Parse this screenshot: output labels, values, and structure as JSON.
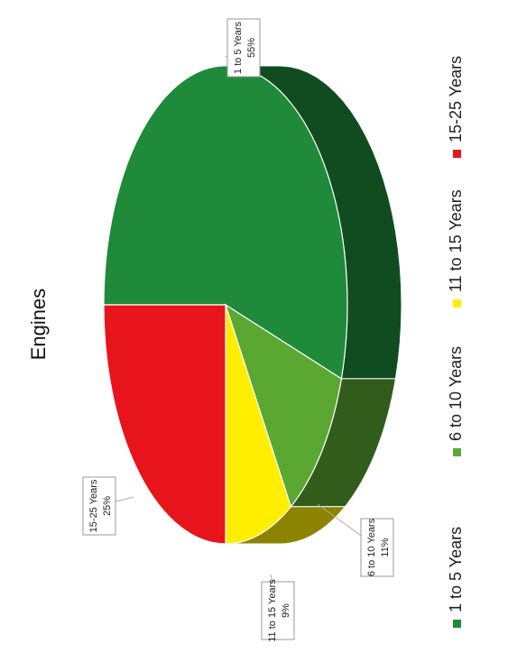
{
  "chart_data": {
    "type": "pie",
    "title": "Engines",
    "categories": [
      "1 to 5 Years",
      "6 to 10 Years",
      "11 to 15 Years",
      "15-25 Years"
    ],
    "values": [
      55,
      11,
      9,
      25
    ],
    "unit": "%",
    "data_labels": [
      {
        "category": "1 to 5 Years",
        "value": "55%"
      },
      {
        "category": "6 to 10 Years",
        "value": "11%"
      },
      {
        "category": "11 to 15 Years",
        "value": "9%"
      },
      {
        "category": "15-25 Years",
        "value": "25%"
      }
    ],
    "colors": {
      "1 to 5 Years": "#1f8a3a",
      "6 to 10 Years": "#5aa832",
      "11 to 15 Years": "#ffee00",
      "15-25 Years": "#e8141b"
    },
    "legend_position": "bottom",
    "style": "3d-pie, page rotated 90 degrees counter-clockwise"
  }
}
